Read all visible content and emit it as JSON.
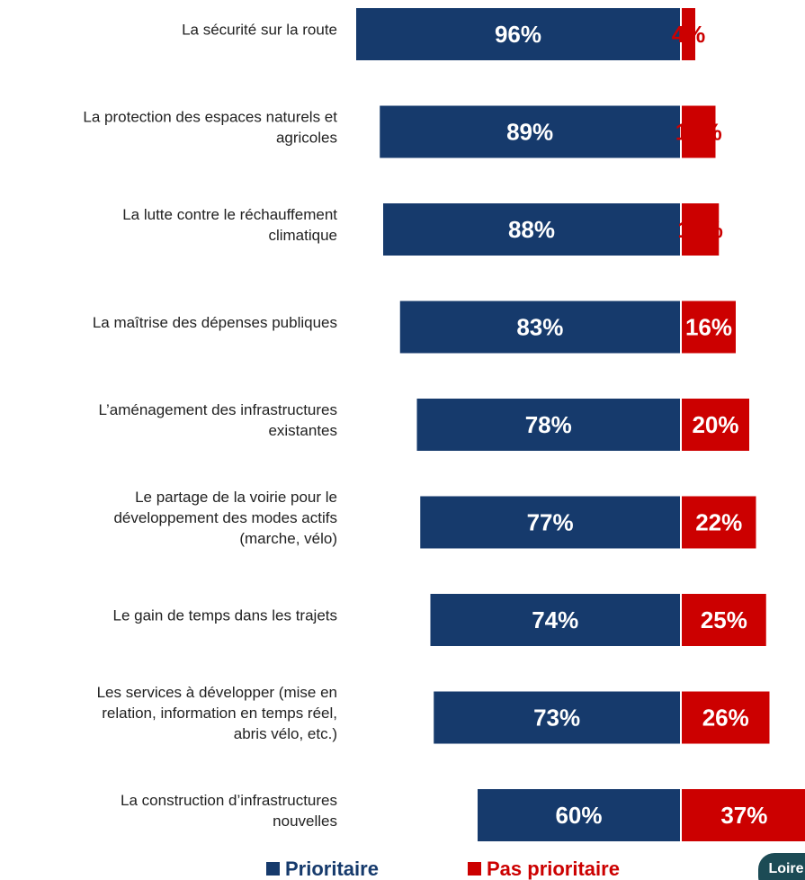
{
  "chart_data": {
    "type": "diverging-bar",
    "categories": [
      [
        "La sécurité sur la route"
      ],
      [
        "La protection des espaces naturels et",
        "agricoles"
      ],
      [
        "La lutte contre le réchauffement",
        "climatique"
      ],
      [
        "La maîtrise des dépenses publiques"
      ],
      [
        "L’aménagement des infrastructures",
        "existantes"
      ],
      [
        "Le partage de la voirie pour le",
        "développement des modes actifs",
        "(marche, vélo)"
      ],
      [
        "Le gain de temps dans les trajets"
      ],
      [
        "Les services à développer (mise en",
        "relation, information en temps réel,",
        "abris vélo, etc.)"
      ],
      [
        "La construction d’infrastructures",
        "nouvelles"
      ]
    ],
    "series": [
      {
        "name": "Prioritaire",
        "color": "#163a6c",
        "side": "left",
        "values": [
          96,
          89,
          88,
          83,
          78,
          77,
          74,
          73,
          60
        ],
        "value_labels": [
          "96%",
          "89%",
          "88%",
          "83%",
          "78%",
          "77%",
          "74%",
          "73%",
          "60%"
        ]
      },
      {
        "name": "Pas prioritaire",
        "color": "#cc0000",
        "side": "right",
        "values": [
          4,
          10,
          11,
          16,
          20,
          22,
          25,
          26,
          37
        ],
        "value_labels": [
          "4%",
          "10%",
          "11%",
          "16%",
          "20%",
          "22%",
          "25%",
          "26%",
          "37%"
        ]
      }
    ],
    "legend": "bottom",
    "logo": "Loire"
  }
}
